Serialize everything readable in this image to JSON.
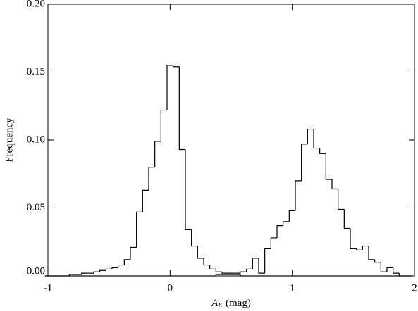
{
  "chart_data": {
    "type": "histogram",
    "xlabel": {
      "symbol": "A",
      "subscript": "K",
      "unit": "(mag)"
    },
    "ylabel": "Frequency",
    "bins": [
      -1.025,
      -0.975,
      -0.925,
      -0.875,
      -0.825,
      -0.775,
      -0.725,
      -0.675,
      -0.625,
      -0.575,
      -0.525,
      -0.475,
      -0.425,
      -0.375,
      -0.325,
      -0.275,
      -0.225,
      -0.175,
      -0.125,
      -0.075,
      -0.025,
      0.025,
      0.075,
      0.125,
      0.175,
      0.225,
      0.275,
      0.325,
      0.375,
      0.425,
      0.475,
      0.525,
      0.575,
      0.625,
      0.675,
      0.725,
      0.775,
      0.825,
      0.875,
      0.925,
      0.975,
      1.025,
      1.075,
      1.125,
      1.175,
      1.225,
      1.275,
      1.325,
      1.375,
      1.425,
      1.475,
      1.525,
      1.575,
      1.625,
      1.675,
      1.725,
      1.775,
      1.825,
      1.875,
      1.925,
      1.975
    ],
    "series": [
      {
        "color": "#000000",
        "values": [
          0,
          0,
          0,
          0,
          0.001,
          0.001,
          0.002,
          0.002,
          0.003,
          0.004,
          0.005,
          0.006,
          0.008,
          0.012,
          0.021,
          0.047,
          0.063,
          0.08,
          0.099,
          0.122,
          0.155,
          0.154,
          0.093,
          0.034,
          0.022,
          0.013,
          0.008,
          0.005,
          0.003,
          0.002,
          0.001,
          0.001,
          0,
          0,
          0,
          0,
          0,
          0,
          0,
          0,
          0,
          0,
          0,
          0,
          0,
          0,
          0,
          0,
          0,
          0,
          0,
          0,
          0,
          0,
          0,
          0,
          0,
          0,
          0,
          0
        ]
      },
      {
        "color": "#000000",
        "values": [
          0,
          0,
          0,
          0,
          0,
          0,
          0,
          0,
          0,
          0,
          0,
          0,
          0,
          0,
          0,
          0,
          0,
          0,
          0,
          0,
          0,
          0,
          0,
          0,
          0,
          0,
          0,
          0,
          0.001,
          0.001,
          0.002,
          0.002,
          0.003,
          0.005,
          0.013,
          0.002,
          0.02,
          0.028,
          0.037,
          0.04,
          0.048,
          0.07,
          0.097,
          0.108,
          0.094,
          0.09,
          0.071,
          0.064,
          0.049,
          0.035,
          0.02,
          0.019,
          0.022,
          0.012,
          0.01,
          0.003,
          0.006,
          0.002,
          0,
          0
        ]
      }
    ],
    "xlim": [
      -1,
      2
    ],
    "xticks": [
      -1,
      0,
      1,
      2
    ],
    "ylim": [
      0,
      0.2
    ],
    "yticks": [
      {
        "value": 0,
        "label": "0.00"
      },
      {
        "value": 0.05,
        "label": "0.05"
      },
      {
        "value": 0.1,
        "label": "0.10"
      },
      {
        "value": 0.15,
        "label": "0.15"
      },
      {
        "value": 0.2,
        "label": "0.20"
      }
    ]
  }
}
